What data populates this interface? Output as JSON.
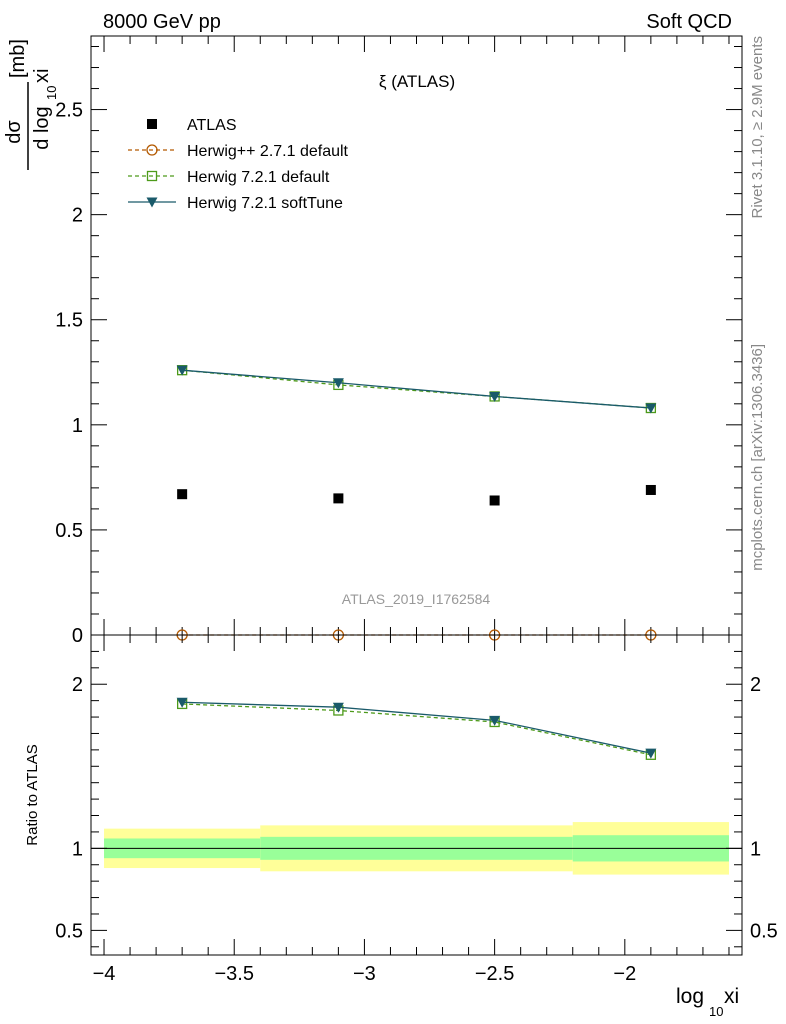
{
  "header": {
    "left": "8000 GeV pp",
    "right": "Soft QCD"
  },
  "side": {
    "rivet": "Rivet 3.1.10, ≥ 2.9M events",
    "source": "mcplots.cern.ch [arXiv:1306.3436]"
  },
  "chart_data": [
    {
      "type": "scatter",
      "title": "ξ (ATLAS)",
      "watermark": "ATLAS_2019_I1762584",
      "ylabel_num": "dσ",
      "ylabel_den": "d log",
      "ylabel_sub": "10",
      "ylabel_var": "xi",
      "ylabel_unit": "[mb]",
      "xlim": [
        -4.05,
        -1.55
      ],
      "ylim": [
        0,
        2.85
      ],
      "yticks": [
        0.5,
        1,
        1.5,
        2,
        2.5
      ],
      "ytick_labels": [
        "0.5",
        "1",
        "1.5",
        "2",
        "2.5"
      ],
      "y_zero_label": "0",
      "legend_position": "top-left",
      "x": [
        -3.7,
        -3.1,
        -2.5,
        -1.9
      ],
      "series": [
        {
          "name": "ATLAS",
          "color": "#000000",
          "marker": "filled-square",
          "line": "none",
          "values": [
            0.67,
            0.65,
            0.64,
            0.69
          ]
        },
        {
          "name": "Herwig++ 2.7.1 default",
          "color": "#b35900",
          "marker": "open-circle",
          "line": "dashed",
          "values": [
            0.0,
            0.0,
            0.0,
            0.0
          ]
        },
        {
          "name": "Herwig 7.2.1 default",
          "color": "#4d9a1a",
          "marker": "open-square",
          "line": "dashed",
          "values": [
            1.26,
            1.19,
            1.135,
            1.08
          ]
        },
        {
          "name": "Herwig 7.2.1 softTune",
          "color": "#1a5a6a",
          "marker": "filled-triangle-down",
          "line": "solid",
          "values": [
            1.26,
            1.2,
            1.135,
            1.08
          ]
        }
      ]
    },
    {
      "type": "line",
      "ylabel": "Ratio to ATLAS",
      "xlabel_main": "log",
      "xlabel_sub": "10",
      "xlabel_var": "xi",
      "xlim": [
        -4.05,
        -1.55
      ],
      "ylim": [
        0.35,
        2.3
      ],
      "xticks": [
        -4,
        -3.5,
        -3,
        -2.5,
        -2
      ],
      "xtick_labels": [
        "−4",
        "−3.5",
        "−3",
        "−2.5",
        "−2"
      ],
      "yticks": [
        0.5,
        1,
        2
      ],
      "ytick_labels": [
        "0.5",
        "1",
        "2"
      ],
      "x": [
        -3.7,
        -3.1,
        -2.5,
        -1.9
      ],
      "bands": [
        {
          "x0": -4.0,
          "x1": -3.4,
          "inner": [
            0.94,
            1.06
          ],
          "outer": [
            0.88,
            1.12
          ]
        },
        {
          "x0": -3.4,
          "x1": -2.2,
          "inner": [
            0.93,
            1.07
          ],
          "outer": [
            0.86,
            1.14
          ]
        },
        {
          "x0": -2.2,
          "x1": -1.6,
          "inner": [
            0.92,
            1.08
          ],
          "outer": [
            0.84,
            1.16
          ]
        }
      ],
      "band_colors": {
        "inner": "#99ff99",
        "outer": "#ffff99"
      },
      "series": [
        {
          "name": "Herwig 7.2.1 default",
          "color": "#4d9a1a",
          "marker": "open-square",
          "line": "dashed",
          "values": [
            1.88,
            1.84,
            1.77,
            1.57
          ]
        },
        {
          "name": "Herwig 7.2.1 softTune",
          "color": "#1a5a6a",
          "marker": "filled-triangle-down",
          "line": "solid",
          "values": [
            1.89,
            1.86,
            1.78,
            1.58
          ]
        }
      ]
    }
  ]
}
